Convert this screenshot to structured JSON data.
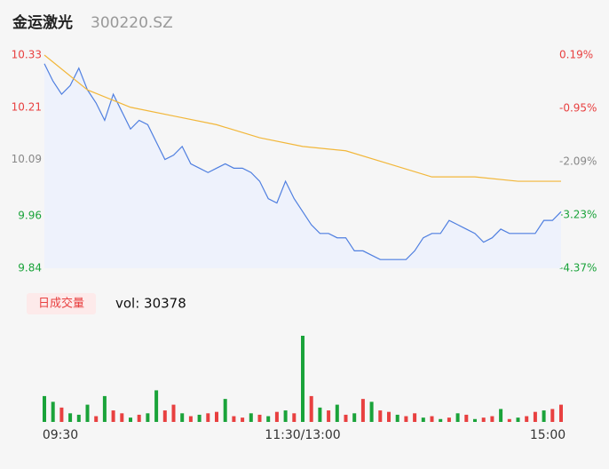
{
  "header": {
    "name": "金运激光",
    "code": "300220.SZ"
  },
  "chart_data": {
    "type": "intraday",
    "xlim": [
      0,
      240
    ],
    "xticks": [
      {
        "value": 0,
        "label": "09:30"
      },
      {
        "value": 120,
        "label": "11:30/13:00"
      },
      {
        "value": 240,
        "label": "15:00"
      }
    ],
    "ylim": [
      9.84,
      10.33
    ],
    "yticks": [
      10.33,
      10.21,
      10.09,
      9.96,
      9.84
    ],
    "y2lim": [
      -4.37,
      0.19
    ],
    "y2ticks": [
      {
        "value": 0.19,
        "label": "0.19%"
      },
      {
        "value": -0.95,
        "label": "-0.95%"
      },
      {
        "value": -2.09,
        "label": "-2.09%"
      },
      {
        "value": -3.23,
        "label": "-3.23%"
      },
      {
        "value": -4.37,
        "label": "-4.37%"
      }
    ],
    "up_color": "#e84040",
    "down_color": "#1aa33a",
    "flat_color": "#888888",
    "series": [
      {
        "color": "#4f7fe0",
        "x": [
          0,
          4,
          8,
          12,
          16,
          20,
          24,
          28,
          32,
          36,
          40,
          44,
          48,
          52,
          56,
          60,
          64,
          68,
          72,
          76,
          80,
          84,
          88,
          92,
          96,
          100,
          104,
          108,
          112,
          116,
          120,
          124,
          128,
          132,
          136,
          140,
          144,
          148,
          152,
          156,
          160,
          164,
          168,
          172,
          176,
          180,
          184,
          188,
          192,
          196,
          200,
          204,
          208,
          212,
          216,
          220,
          224,
          228,
          232,
          236,
          240
        ],
        "values": [
          10.31,
          10.27,
          10.24,
          10.26,
          10.3,
          10.25,
          10.22,
          10.18,
          10.24,
          10.2,
          10.16,
          10.18,
          10.17,
          10.13,
          10.09,
          10.1,
          10.12,
          10.08,
          10.07,
          10.06,
          10.07,
          10.08,
          10.07,
          10.07,
          10.06,
          10.04,
          10.0,
          9.99,
          10.04,
          10.0,
          9.97,
          9.94,
          9.92,
          9.92,
          9.91,
          9.91,
          9.88,
          9.88,
          9.87,
          9.86,
          9.86,
          9.86,
          9.86,
          9.88,
          9.91,
          9.92,
          9.92,
          9.95,
          9.94,
          9.93,
          9.92,
          9.9,
          9.91,
          9.93,
          9.92,
          9.92,
          9.92,
          9.92,
          9.95,
          9.95,
          9.97
        ]
      },
      {
        "color": "#f2b73a",
        "x": [
          0,
          20,
          40,
          60,
          80,
          100,
          120,
          140,
          160,
          180,
          200,
          220,
          240
        ],
        "values": [
          10.33,
          10.25,
          10.21,
          10.19,
          10.17,
          10.14,
          10.12,
          10.11,
          10.08,
          10.05,
          10.05,
          10.04,
          10.04
        ]
      }
    ],
    "volume": {
      "label": "日成交量",
      "text": "vol: 30378",
      "x": [
        0,
        4,
        8,
        12,
        16,
        20,
        24,
        28,
        32,
        36,
        40,
        44,
        48,
        52,
        56,
        60,
        64,
        68,
        72,
        76,
        80,
        84,
        88,
        92,
        96,
        100,
        104,
        108,
        112,
        116,
        120,
        124,
        128,
        132,
        136,
        140,
        144,
        148,
        152,
        156,
        160,
        164,
        168,
        172,
        176,
        180,
        184,
        188,
        192,
        196,
        200,
        204,
        208,
        212,
        216,
        220,
        224,
        228,
        232,
        236,
        240
      ],
      "values": [
        900,
        700,
        500,
        300,
        250,
        600,
        200,
        900,
        400,
        300,
        150,
        250,
        300,
        1100,
        400,
        600,
        300,
        200,
        250,
        300,
        350,
        800,
        200,
        150,
        300,
        250,
        200,
        350,
        400,
        300,
        3000,
        900,
        500,
        400,
        600,
        250,
        300,
        800,
        700,
        400,
        350,
        250,
        200,
        300,
        150,
        200,
        100,
        150,
        300,
        250,
        100,
        150,
        200,
        450,
        100,
        150,
        200,
        350,
        400,
        450,
        600
      ],
      "colors": [
        "#1aa33a",
        "#1aa33a",
        "#e84040",
        "#1aa33a",
        "#1aa33a",
        "#1aa33a",
        "#e84040",
        "#1aa33a",
        "#e84040",
        "#e84040",
        "#1aa33a",
        "#e84040",
        "#1aa33a",
        "#1aa33a",
        "#e84040",
        "#e84040",
        "#1aa33a",
        "#e84040",
        "#1aa33a",
        "#e84040",
        "#e84040",
        "#1aa33a",
        "#e84040",
        "#e84040",
        "#1aa33a",
        "#e84040",
        "#1aa33a",
        "#e84040",
        "#1aa33a",
        "#e84040",
        "#1aa33a",
        "#e84040",
        "#1aa33a",
        "#e84040",
        "#1aa33a",
        "#e84040",
        "#1aa33a",
        "#e84040",
        "#1aa33a",
        "#e84040",
        "#e84040",
        "#1aa33a",
        "#e84040",
        "#e84040",
        "#1aa33a",
        "#e84040",
        "#1aa33a",
        "#e84040",
        "#1aa33a",
        "#e84040",
        "#1aa33a",
        "#e84040",
        "#e84040",
        "#1aa33a",
        "#e84040",
        "#1aa33a",
        "#e84040",
        "#e84040",
        "#1aa33a",
        "#e84040",
        "#e84040"
      ]
    }
  }
}
